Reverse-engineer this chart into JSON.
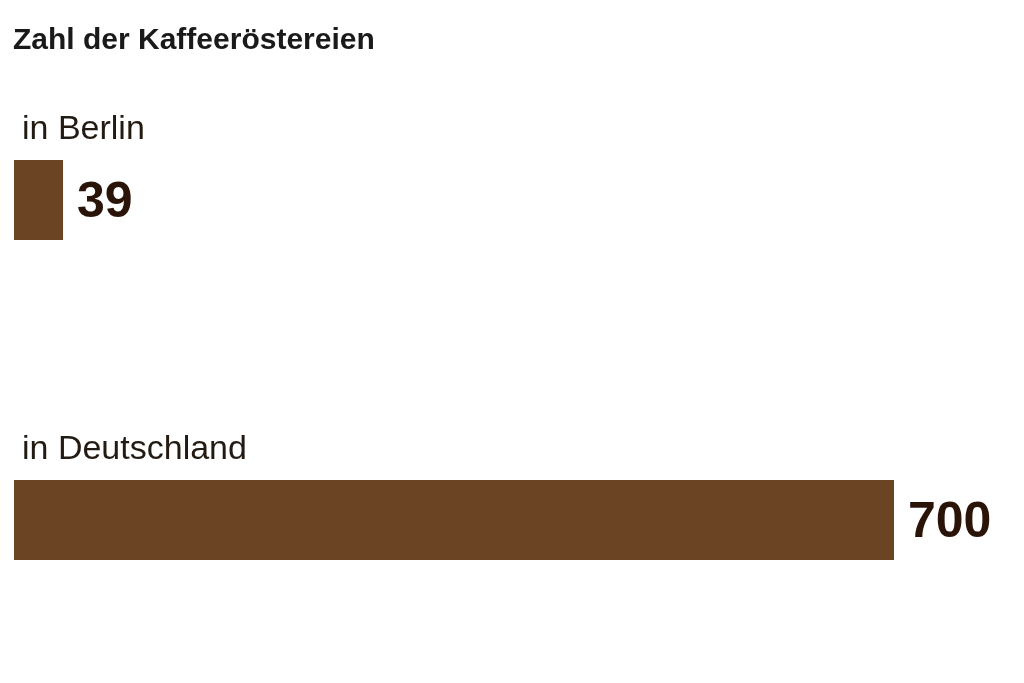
{
  "chart_data": {
    "type": "bar",
    "title": "Zahl der Kaffeeröstereien",
    "orientation": "horizontal",
    "categories": [
      "in Berlin",
      "in Deutschland"
    ],
    "values": [
      39,
      700
    ],
    "color": "#6b4423",
    "data_labels": true
  }
}
